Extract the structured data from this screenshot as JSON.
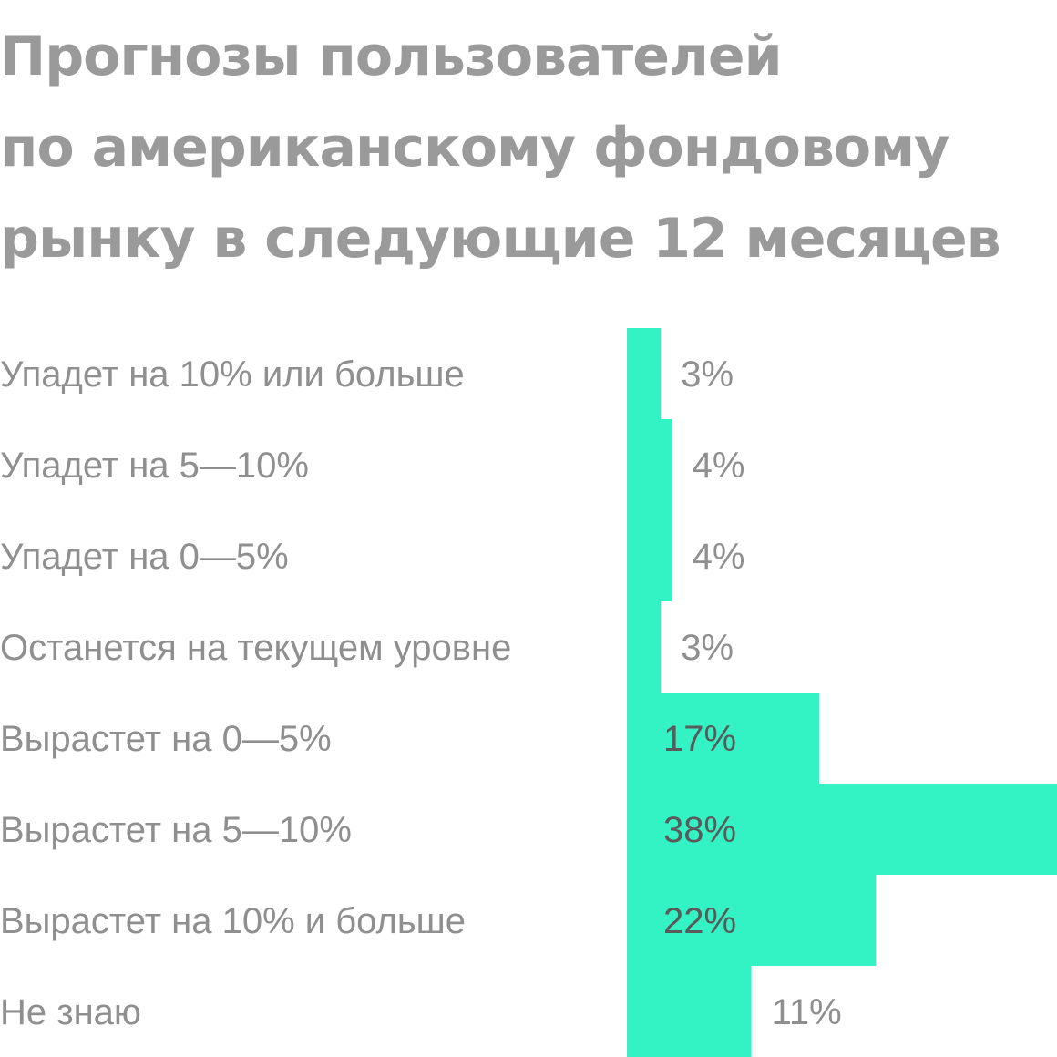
{
  "chart_data": {
    "type": "bar",
    "orientation": "horizontal",
    "title_lines": [
      "Прогнозы пользователей",
      "по американскому фондовому",
      "рынку в следующие 12 месяцев"
    ],
    "categories": [
      "Упадет на 10% или больше",
      "Упадет на 5—10%",
      "Упадет на 0—5%",
      "Останется на текущем уровне",
      "Вырастет на 0—5%",
      "Вырастет на 5—10%",
      "Вырастет на 10% и больше",
      "Не знаю"
    ],
    "values": [
      3,
      4,
      4,
      3,
      17,
      38,
      22,
      11
    ],
    "value_labels": [
      "3%",
      "4%",
      "4%",
      "3%",
      "17%",
      "38%",
      "22%",
      "11%"
    ],
    "unit": "%",
    "xlim": [
      0,
      38
    ],
    "grid": false,
    "legend": "none"
  },
  "colors": {
    "bar": "#33f3c4",
    "title": "#9a9a9a",
    "category_label": "#8f8f8f",
    "value_label_outside": "#8f8f8f",
    "value_label_inside": "#5a5a5a"
  }
}
